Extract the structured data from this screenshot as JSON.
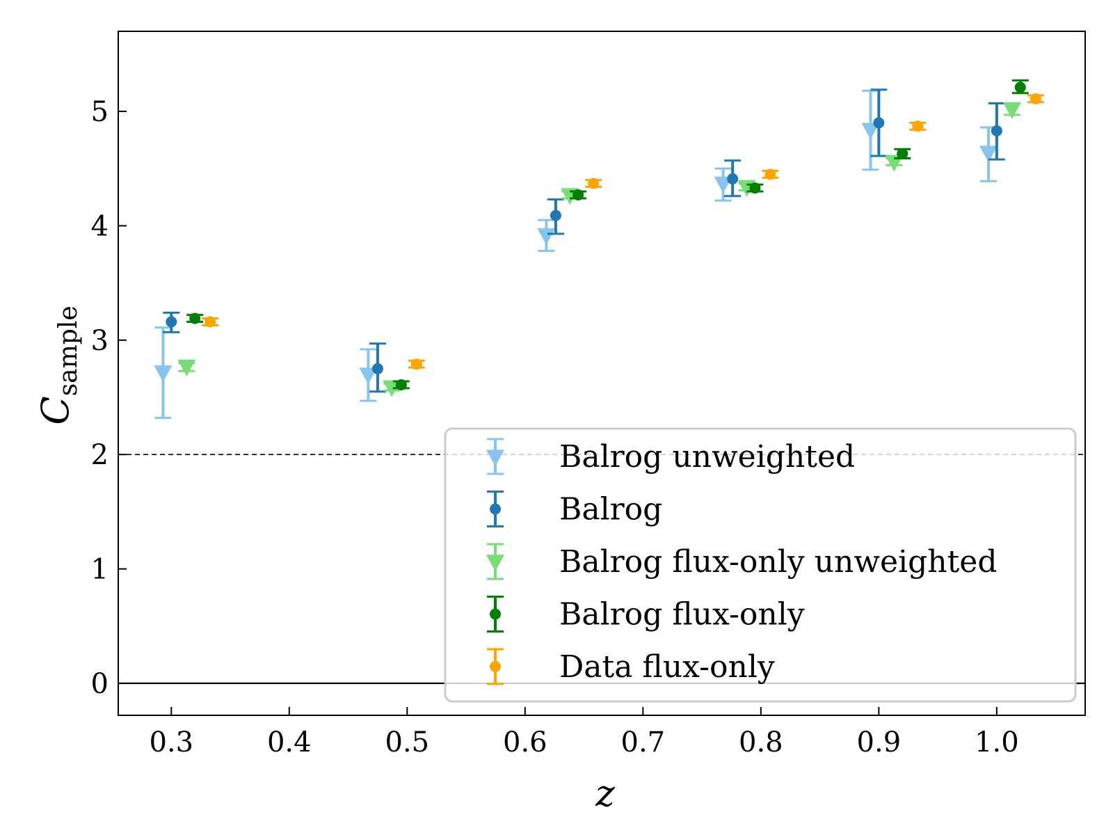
{
  "chart_data": {
    "type": "scatter",
    "xlabel": "z",
    "ylabel": "C",
    "ylabel_subscript": "sample",
    "xlim": [
      0.255,
      1.075
    ],
    "ylim": [
      -0.28,
      5.7
    ],
    "xticks": [
      0.3,
      0.4,
      0.5,
      0.6,
      0.7,
      0.8,
      0.9,
      1.0
    ],
    "xtick_labels": [
      "0.3",
      "0.4",
      "0.5",
      "0.6",
      "0.7",
      "0.8",
      "0.9",
      "1.0"
    ],
    "yticks": [
      0,
      1,
      2,
      3,
      4,
      5
    ],
    "ytick_labels": [
      "0",
      "1",
      "2",
      "3",
      "4",
      "5"
    ],
    "reference_lines": [
      {
        "y": 2,
        "style": "dashed"
      },
      {
        "y": 0,
        "style": "solid"
      }
    ],
    "legend_position": "lower-right",
    "series": [
      {
        "name": "Balrog unweighted",
        "marker": "triangle-down",
        "color": "#87c5f0",
        "points": [
          {
            "x": 0.293,
            "y": 2.72,
            "err_hi": 3.11,
            "err_lo": 2.32
          },
          {
            "x": 0.467,
            "y": 2.7,
            "err_hi": 2.92,
            "err_lo": 2.47
          },
          {
            "x": 0.618,
            "y": 3.92,
            "err_hi": 4.05,
            "err_lo": 3.78
          },
          {
            "x": 0.768,
            "y": 4.37,
            "err_hi": 4.5,
            "err_lo": 4.22
          },
          {
            "x": 0.893,
            "y": 4.84,
            "err_hi": 5.18,
            "err_lo": 4.49
          },
          {
            "x": 0.993,
            "y": 4.64,
            "err_hi": 4.86,
            "err_lo": 4.39
          }
        ]
      },
      {
        "name": "Balrog",
        "marker": "circle",
        "color": "#1f77b4",
        "points": [
          {
            "x": 0.3,
            "y": 3.16,
            "err_hi": 3.24,
            "err_lo": 3.07
          },
          {
            "x": 0.475,
            "y": 2.75,
            "err_hi": 2.97,
            "err_lo": 2.55
          },
          {
            "x": 0.626,
            "y": 4.09,
            "err_hi": 4.23,
            "err_lo": 3.93
          },
          {
            "x": 0.776,
            "y": 4.41,
            "err_hi": 4.57,
            "err_lo": 4.26
          },
          {
            "x": 0.9,
            "y": 4.9,
            "err_hi": 5.19,
            "err_lo": 4.61
          },
          {
            "x": 1.0,
            "y": 4.83,
            "err_hi": 5.07,
            "err_lo": 4.58
          }
        ]
      },
      {
        "name": "Balrog flux-only unweighted",
        "marker": "triangle-down",
        "color": "#77dd77",
        "points": [
          {
            "x": 0.313,
            "y": 2.77,
            "err_hi": 2.8,
            "err_lo": 2.73
          },
          {
            "x": 0.487,
            "y": 2.59,
            "err_hi": 2.62,
            "err_lo": 2.56
          },
          {
            "x": 0.638,
            "y": 4.27,
            "err_hi": 4.3,
            "err_lo": 4.24
          },
          {
            "x": 0.788,
            "y": 4.34,
            "err_hi": 4.37,
            "err_lo": 4.31
          },
          {
            "x": 0.913,
            "y": 4.56,
            "err_hi": 4.59,
            "err_lo": 4.53
          },
          {
            "x": 1.013,
            "y": 5.02,
            "err_hi": 5.07,
            "err_lo": 4.97
          }
        ]
      },
      {
        "name": "Balrog flux-only",
        "marker": "circle",
        "color": "#008000",
        "points": [
          {
            "x": 0.32,
            "y": 3.19,
            "err_hi": 3.22,
            "err_lo": 3.16
          },
          {
            "x": 0.495,
            "y": 2.61,
            "err_hi": 2.64,
            "err_lo": 2.58
          },
          {
            "x": 0.645,
            "y": 4.27,
            "err_hi": 4.3,
            "err_lo": 4.24
          },
          {
            "x": 0.795,
            "y": 4.33,
            "err_hi": 4.36,
            "err_lo": 4.3
          },
          {
            "x": 0.92,
            "y": 4.63,
            "err_hi": 4.67,
            "err_lo": 4.59
          },
          {
            "x": 1.02,
            "y": 5.21,
            "err_hi": 5.27,
            "err_lo": 5.16
          }
        ]
      },
      {
        "name": "Data flux-only",
        "marker": "circle",
        "color": "#ffa500",
        "points": [
          {
            "x": 0.333,
            "y": 3.16,
            "err_hi": 3.19,
            "err_lo": 3.13
          },
          {
            "x": 0.508,
            "y": 2.79,
            "err_hi": 2.82,
            "err_lo": 2.76
          },
          {
            "x": 0.658,
            "y": 4.37,
            "err_hi": 4.4,
            "err_lo": 4.34
          },
          {
            "x": 0.808,
            "y": 4.45,
            "err_hi": 4.48,
            "err_lo": 4.42
          },
          {
            "x": 0.933,
            "y": 4.87,
            "err_hi": 4.9,
            "err_lo": 4.84
          },
          {
            "x": 1.033,
            "y": 5.11,
            "err_hi": 5.14,
            "err_lo": 5.08
          }
        ]
      }
    ]
  }
}
